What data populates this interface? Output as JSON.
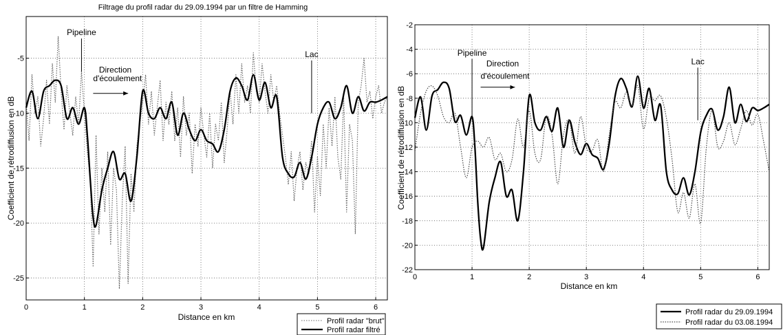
{
  "chart_data": [
    {
      "type": "line",
      "title": "Filtrage du profil radar du 29.09.1994 par un filtre de Hamming",
      "xlabel": "Distance en km",
      "ylabel": "Coefficient de rétrodiffusion en dB",
      "xlim": [
        0,
        6.2
      ],
      "ylim": [
        -27,
        -1.2
      ],
      "xticks": [
        0,
        1,
        2,
        3,
        4,
        5,
        6
      ],
      "yticks": [
        -25,
        -20,
        -15,
        -10,
        -5
      ],
      "xtick_labels": [
        "0",
        "1",
        "2",
        "3",
        "4",
        "5",
        "6"
      ],
      "ytick_labels": [
        "-25",
        "-20",
        "-15",
        "-10",
        "-5"
      ],
      "grid": true,
      "legend_position": "bottom-right outside",
      "annotations": [
        {
          "text": "Pipeline",
          "x": 0.95,
          "line_top": -3.2,
          "line_bottom": -6.2
        },
        {
          "text": "Direction",
          "x": 1.25,
          "y": -6.3
        },
        {
          "text": "d'écoulement",
          "x": 1.15,
          "y": -7.1
        },
        {
          "text": "Lac",
          "x": 4.9,
          "line_top": -5.2,
          "line_bottom": -10
        }
      ],
      "arrow": {
        "x1": 1.15,
        "x2": 1.75,
        "y": -8.2
      },
      "series": [
        {
          "name": "Profil radar \"brut\"",
          "style": "dotted",
          "color": "#666666",
          "x": [
            0,
            0.05,
            0.1,
            0.15,
            0.2,
            0.25,
            0.3,
            0.35,
            0.4,
            0.45,
            0.5,
            0.55,
            0.6,
            0.65,
            0.7,
            0.75,
            0.8,
            0.85,
            0.9,
            0.95,
            1.0,
            1.05,
            1.1,
            1.15,
            1.2,
            1.25,
            1.3,
            1.35,
            1.4,
            1.45,
            1.5,
            1.55,
            1.6,
            1.65,
            1.7,
            1.75,
            1.8,
            1.85,
            1.9,
            1.95,
            2.0,
            2.05,
            2.1,
            2.15,
            2.2,
            2.25,
            2.3,
            2.35,
            2.4,
            2.45,
            2.5,
            2.55,
            2.6,
            2.65,
            2.7,
            2.75,
            2.8,
            2.85,
            2.9,
            2.95,
            3.0,
            3.05,
            3.1,
            3.15,
            3.2,
            3.25,
            3.3,
            3.35,
            3.4,
            3.45,
            3.5,
            3.55,
            3.6,
            3.65,
            3.7,
            3.75,
            3.8,
            3.85,
            3.9,
            3.95,
            4.0,
            4.05,
            4.1,
            4.15,
            4.2,
            4.25,
            4.3,
            4.35,
            4.4,
            4.45,
            4.5,
            4.55,
            4.6,
            4.65,
            4.7,
            4.75,
            4.8,
            4.85,
            4.9,
            4.95,
            5.0,
            5.05,
            5.1,
            5.15,
            5.2,
            5.25,
            5.3,
            5.35,
            5.4,
            5.45,
            5.5,
            5.55,
            5.6,
            5.65,
            5.7,
            5.75,
            5.8,
            5.85,
            5.9,
            5.95,
            6.0,
            6.05,
            6.1,
            6.15,
            6.2
          ],
          "values": [
            -9,
            -12.5,
            -6.5,
            -10,
            -8.5,
            -13,
            -10.5,
            -7,
            -11,
            -5.5,
            -9,
            -3,
            -8,
            -11.5,
            -7.5,
            -10,
            -12,
            -8.5,
            -11,
            -6.2,
            -10,
            -13.5,
            -16,
            -24,
            -12,
            -21,
            -15,
            -19,
            -13.5,
            -22,
            -15,
            -17,
            -26,
            -18,
            -13,
            -25.5,
            -15.5,
            -19,
            -13,
            -11,
            -9,
            -6.5,
            -11,
            -8,
            -12,
            -9.5,
            -7,
            -12.5,
            -9,
            -11,
            -8,
            -12.5,
            -9.5,
            -14,
            -8.5,
            -12,
            -10,
            -15.5,
            -11,
            -13,
            -9.5,
            -12,
            -14,
            -10,
            -15,
            -11,
            -12.5,
            -9,
            -14.5,
            -11.5,
            -8,
            -11,
            -6.5,
            -10,
            -5.5,
            -9,
            -7.5,
            -10,
            -4.5,
            -8,
            -9,
            -5.5,
            -8,
            -10,
            -6.5,
            -9,
            -7.5,
            -10,
            -12,
            -14,
            -16.5,
            -13.5,
            -18,
            -15,
            -13.5,
            -17,
            -14.5,
            -15.5,
            -12.5,
            -19,
            -14,
            -17.5,
            -11,
            -15,
            -9.5,
            -13,
            -8.5,
            -14,
            -16,
            -8.5,
            -19,
            -11,
            -12.5,
            -21,
            -9,
            -7.5,
            -5,
            -9,
            -8,
            -10.5,
            -8.5,
            -7.5,
            -10,
            -9,
            -8.5
          ]
        },
        {
          "name": "Profil radar filtré",
          "style": "solid",
          "color": "#000000",
          "x": [
            0,
            0.1,
            0.2,
            0.3,
            0.4,
            0.5,
            0.6,
            0.7,
            0.8,
            0.9,
            1.0,
            1.05,
            1.1,
            1.15,
            1.2,
            1.3,
            1.4,
            1.5,
            1.6,
            1.7,
            1.8,
            1.9,
            2.0,
            2.1,
            2.2,
            2.3,
            2.4,
            2.5,
            2.6,
            2.7,
            2.8,
            2.9,
            3.0,
            3.1,
            3.2,
            3.3,
            3.4,
            3.5,
            3.6,
            3.7,
            3.8,
            3.9,
            4.0,
            4.1,
            4.2,
            4.3,
            4.4,
            4.5,
            4.6,
            4.7,
            4.8,
            4.9,
            5.0,
            5.1,
            5.2,
            5.3,
            5.4,
            5.5,
            5.6,
            5.7,
            5.8,
            5.9,
            6.0,
            6.1,
            6.2
          ],
          "values": [
            -9.5,
            -8,
            -10.5,
            -8,
            -7.5,
            -7,
            -7.5,
            -10.5,
            -9.5,
            -11,
            -9.5,
            -12,
            -16,
            -19.5,
            -20.2,
            -17,
            -15,
            -13.5,
            -16,
            -15.5,
            -18,
            -14,
            -8,
            -10,
            -10.5,
            -9.5,
            -10.5,
            -9,
            -12,
            -10,
            -11.5,
            -12.5,
            -11.5,
            -12.5,
            -12.8,
            -13.5,
            -11.5,
            -8,
            -6.8,
            -7.5,
            -8.8,
            -6.5,
            -8.8,
            -7.2,
            -9.5,
            -8.5,
            -14,
            -15.5,
            -15.8,
            -14.5,
            -16,
            -14,
            -11,
            -9.5,
            -9,
            -10.5,
            -9.5,
            -7.5,
            -10,
            -8.5,
            -9.8,
            -9,
            -9,
            -8.8,
            -8.5
          ]
        }
      ]
    },
    {
      "type": "line",
      "xlabel": "Distance en km",
      "ylabel": "Coefficient de rétrodiffusion en dB",
      "xlim": [
        0,
        6.2
      ],
      "ylim": [
        -22,
        -2
      ],
      "xticks": [
        0,
        1,
        2,
        3,
        4,
        5,
        6
      ],
      "yticks": [
        -22,
        -20,
        -18,
        -16,
        -14,
        -12,
        -10,
        -8,
        -6,
        -4,
        -2
      ],
      "xtick_labels": [
        "0",
        "1",
        "2",
        "3",
        "4",
        "5",
        "6"
      ],
      "ytick_labels": [
        "-22",
        "-20",
        "-18",
        "-16",
        "-14",
        "-12",
        "-10",
        "-8",
        "-6",
        "-4",
        "-2"
      ],
      "grid": true,
      "legend_position": "bottom-right outside",
      "annotations": [
        {
          "text": "Pipeline",
          "x": 1.0,
          "line_top": -4.8,
          "line_bottom": -9.5
        },
        {
          "text": "Direction",
          "x": 1.25,
          "y": -5.4
        },
        {
          "text": "d'écoulement",
          "x": 1.15,
          "y": -6.4
        },
        {
          "text": "Lac",
          "x": 4.95,
          "line_top": -5.5,
          "line_bottom": -9.8
        }
      ],
      "arrow": {
        "x1": 1.15,
        "x2": 1.75,
        "y": -7.1
      },
      "series": [
        {
          "name": "Profil radar du 29.09.1994",
          "style": "solid",
          "color": "#000000",
          "x": [
            0,
            0.1,
            0.2,
            0.3,
            0.4,
            0.5,
            0.6,
            0.7,
            0.8,
            0.9,
            1.0,
            1.05,
            1.1,
            1.15,
            1.2,
            1.3,
            1.4,
            1.5,
            1.6,
            1.7,
            1.8,
            1.9,
            2.0,
            2.1,
            2.2,
            2.3,
            2.4,
            2.5,
            2.6,
            2.7,
            2.8,
            2.9,
            3.0,
            3.1,
            3.2,
            3.3,
            3.4,
            3.5,
            3.6,
            3.7,
            3.8,
            3.9,
            4.0,
            4.1,
            4.2,
            4.3,
            4.4,
            4.5,
            4.6,
            4.7,
            4.8,
            4.9,
            5.0,
            5.1,
            5.2,
            5.3,
            5.4,
            5.5,
            5.6,
            5.7,
            5.8,
            5.9,
            6.0,
            6.1,
            6.2
          ],
          "values": [
            -9.6,
            -7.9,
            -10.6,
            -7.8,
            -7.3,
            -6.7,
            -7.2,
            -9.9,
            -9.4,
            -11,
            -9.5,
            -12,
            -16.5,
            -19.5,
            -20.2,
            -16.5,
            -14.5,
            -13.2,
            -16,
            -15.5,
            -18,
            -14,
            -7.8,
            -10,
            -10.6,
            -9.5,
            -10.7,
            -8.8,
            -12,
            -9.8,
            -11.6,
            -12.6,
            -11.7,
            -12.6,
            -12.9,
            -13.8,
            -11.7,
            -7.9,
            -6.4,
            -7.2,
            -8.7,
            -6.2,
            -8.8,
            -7.2,
            -9.8,
            -8.6,
            -14,
            -15.5,
            -15.8,
            -14.5,
            -15.9,
            -14,
            -10.8,
            -9.4,
            -8.9,
            -10.6,
            -9.5,
            -7.1,
            -10,
            -8.5,
            -9.9,
            -8.8,
            -9,
            -8.8,
            -8.5
          ]
        },
        {
          "name": "Profil radar du 03.08.1994",
          "style": "dotted",
          "color": "#444444",
          "x": [
            0,
            0.1,
            0.2,
            0.3,
            0.4,
            0.5,
            0.6,
            0.7,
            0.8,
            0.9,
            1.0,
            1.1,
            1.2,
            1.3,
            1.4,
            1.5,
            1.6,
            1.7,
            1.8,
            1.9,
            2.0,
            2.1,
            2.2,
            2.3,
            2.4,
            2.5,
            2.6,
            2.7,
            2.8,
            2.9,
            3.0,
            3.1,
            3.2,
            3.3,
            3.4,
            3.5,
            3.6,
            3.7,
            3.8,
            3.9,
            4.0,
            4.1,
            4.2,
            4.3,
            4.4,
            4.5,
            4.6,
            4.7,
            4.8,
            4.9,
            5.0,
            5.1,
            5.2,
            5.3,
            5.4,
            5.5,
            5.6,
            5.7,
            5.8,
            5.9,
            6.0,
            6.1,
            6.2
          ],
          "values": [
            -12.3,
            -9.2,
            -7.4,
            -7,
            -7.8,
            -9.5,
            -10,
            -9.2,
            -12,
            -14.5,
            -12,
            -11.5,
            -12,
            -11.2,
            -13,
            -12.5,
            -14,
            -13,
            -9.7,
            -12,
            -9,
            -12.5,
            -13,
            -9.5,
            -11,
            -15,
            -11,
            -9.8,
            -12.5,
            -9.5,
            -12,
            -12.3,
            -11.4,
            -14,
            -11,
            -8.3,
            -8.8,
            -7.5,
            -8.6,
            -7,
            -10.5,
            -8,
            -8.2,
            -7.8,
            -9.6,
            -13,
            -17.3,
            -15.7,
            -17.8,
            -15,
            -18.2,
            -12,
            -9,
            -12,
            -11.5,
            -10,
            -11.8,
            -10.5,
            -9,
            -10.2,
            -9.3,
            -11.5,
            -14
          ]
        }
      ]
    }
  ]
}
